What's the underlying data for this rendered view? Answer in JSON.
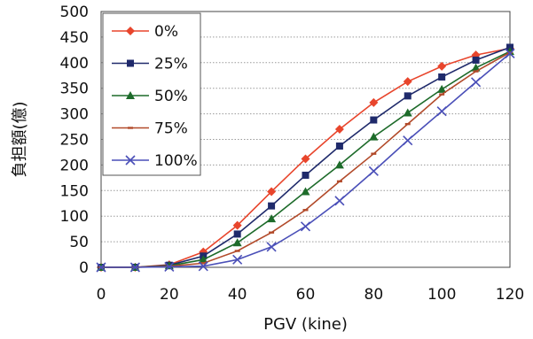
{
  "chart_data": {
    "type": "line",
    "title": "",
    "xlabel": "PGV (kine)",
    "ylabel": "負担額(億)",
    "xlim": [
      0,
      120
    ],
    "ylim": [
      0,
      500
    ],
    "x_ticks": [
      "0",
      "20",
      "40",
      "60",
      "80",
      "100",
      "120"
    ],
    "y_ticks": [
      "0",
      "50",
      "100",
      "150",
      "200",
      "250",
      "300",
      "350",
      "400",
      "450",
      "500"
    ],
    "grid": true,
    "legend_position": "top-left",
    "x": [
      0,
      10,
      20,
      30,
      40,
      50,
      60,
      70,
      80,
      90,
      100,
      110,
      120
    ],
    "series": [
      {
        "name": "0%",
        "color": "#e8452c",
        "marker": "diamond",
        "values": [
          0,
          0,
          5,
          30,
          82,
          148,
          212,
          270,
          322,
          363,
          393,
          415,
          428
        ]
      },
      {
        "name": "25%",
        "color": "#1f2a6b",
        "marker": "square",
        "values": [
          0,
          0,
          4,
          22,
          65,
          120,
          180,
          237,
          288,
          335,
          372,
          405,
          430
        ]
      },
      {
        "name": "50%",
        "color": "#1d6b2a",
        "marker": "triangle",
        "values": [
          0,
          0,
          3,
          15,
          48,
          95,
          148,
          200,
          255,
          302,
          348,
          390,
          422
        ]
      },
      {
        "name": "75%",
        "color": "#b24a2a",
        "marker": "dash",
        "values": [
          0,
          0,
          2,
          8,
          32,
          68,
          112,
          168,
          222,
          280,
          338,
          383,
          420
        ]
      },
      {
        "name": "100%",
        "color": "#4a4fb8",
        "marker": "x",
        "values": [
          0,
          0,
          1,
          2,
          15,
          40,
          80,
          130,
          188,
          248,
          305,
          362,
          418
        ]
      }
    ]
  }
}
